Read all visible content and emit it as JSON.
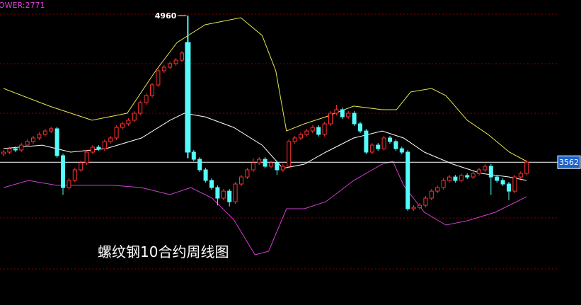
{
  "chart_data": {
    "type": "candlestick",
    "indicator_label": "OWER:2771",
    "title": "螺纹钢10合约周线图",
    "ylim": [
      2200,
      5109
    ],
    "up_color": "#ff3232",
    "down_color": "#54fcfc",
    "ohlc": [
      [
        3640,
        3680,
        3620,
        3658
      ],
      [
        3658,
        3711,
        3638,
        3691
      ],
      [
        3691,
        3711,
        3658,
        3678
      ],
      [
        3678,
        3745,
        3658,
        3725
      ],
      [
        3725,
        3779,
        3705,
        3759
      ],
      [
        3759,
        3813,
        3739,
        3793
      ],
      [
        3793,
        3847,
        3773,
        3827
      ],
      [
        3827,
        3880,
        3807,
        3860
      ],
      [
        3860,
        3901,
        3840,
        3881
      ],
      [
        3881,
        3901,
        3604,
        3624
      ],
      [
        3624,
        3644,
        3250,
        3320
      ],
      [
        3320,
        3408,
        3300,
        3388
      ],
      [
        3388,
        3509,
        3368,
        3489
      ],
      [
        3489,
        3577,
        3469,
        3557
      ],
      [
        3557,
        3678,
        3537,
        3658
      ],
      [
        3658,
        3725,
        3638,
        3705
      ],
      [
        3705,
        3725,
        3671,
        3691
      ],
      [
        3691,
        3779,
        3671,
        3759
      ],
      [
        3759,
        3813,
        3739,
        3793
      ],
      [
        3793,
        3914,
        3773,
        3894
      ],
      [
        3894,
        3948,
        3874,
        3928
      ],
      [
        3928,
        3982,
        3908,
        3962
      ],
      [
        3962,
        4049,
        3942,
        4029
      ],
      [
        4029,
        4150,
        4009,
        4130
      ],
      [
        4130,
        4218,
        4110,
        4198
      ],
      [
        4198,
        4319,
        4178,
        4299
      ],
      [
        4299,
        4454,
        4279,
        4434
      ],
      [
        4434,
        4488,
        4414,
        4468
      ],
      [
        4468,
        4522,
        4448,
        4502
      ],
      [
        4502,
        4555,
        4482,
        4535
      ],
      [
        4535,
        4623,
        4515,
        4603
      ],
      [
        4704,
        4960,
        3600,
        3658
      ],
      [
        3658,
        3678,
        3570,
        3590
      ],
      [
        3590,
        3610,
        3469,
        3489
      ],
      [
        3489,
        3509,
        3368,
        3388
      ],
      [
        3388,
        3408,
        3300,
        3320
      ],
      [
        3320,
        3340,
        3150,
        3219
      ],
      [
        3219,
        3306,
        3199,
        3286
      ],
      [
        3286,
        3306,
        3140,
        3185
      ],
      [
        3185,
        3374,
        3165,
        3354
      ],
      [
        3354,
        3441,
        3334,
        3421
      ],
      [
        3421,
        3509,
        3401,
        3489
      ],
      [
        3489,
        3600,
        3469,
        3557
      ],
      [
        3557,
        3610,
        3537,
        3590
      ],
      [
        3590,
        3610,
        3503,
        3523
      ],
      [
        3523,
        3577,
        3503,
        3557
      ],
      [
        3557,
        3577,
        3440,
        3489
      ],
      [
        3489,
        3543,
        3469,
        3523
      ],
      [
        3523,
        3779,
        3503,
        3759
      ],
      [
        3759,
        3813,
        3739,
        3793
      ],
      [
        3793,
        3847,
        3773,
        3827
      ],
      [
        3827,
        3880,
        3807,
        3860
      ],
      [
        3860,
        3914,
        3840,
        3894
      ],
      [
        3894,
        3914,
        3807,
        3827
      ],
      [
        3827,
        3948,
        3807,
        3928
      ],
      [
        3928,
        4049,
        3908,
        4029
      ],
      [
        4029,
        4110,
        4009,
        4063
      ],
      [
        4063,
        4083,
        3975,
        3995
      ],
      [
        3995,
        4049,
        3975,
        4029
      ],
      [
        4029,
        4049,
        3908,
        3928
      ],
      [
        3928,
        3948,
        3840,
        3860
      ],
      [
        3860,
        3880,
        3638,
        3658
      ],
      [
        3658,
        3745,
        3638,
        3725
      ],
      [
        3725,
        3745,
        3671,
        3691
      ],
      [
        3691,
        3813,
        3671,
        3793
      ],
      [
        3793,
        3813,
        3739,
        3759
      ],
      [
        3759,
        3779,
        3671,
        3691
      ],
      [
        3691,
        3711,
        3638,
        3658
      ],
      [
        3658,
        3678,
        3098,
        3118
      ],
      [
        3118,
        3151,
        3098,
        3131
      ],
      [
        3131,
        3171,
        3111,
        3151
      ],
      [
        3151,
        3239,
        3131,
        3219
      ],
      [
        3219,
        3306,
        3199,
        3286
      ],
      [
        3286,
        3340,
        3266,
        3320
      ],
      [
        3320,
        3408,
        3300,
        3388
      ],
      [
        3388,
        3441,
        3368,
        3421
      ],
      [
        3421,
        3441,
        3368,
        3388
      ],
      [
        3388,
        3455,
        3368,
        3435
      ],
      [
        3435,
        3455,
        3401,
        3421
      ],
      [
        3421,
        3475,
        3401,
        3455
      ],
      [
        3455,
        3509,
        3435,
        3489
      ],
      [
        3489,
        3543,
        3469,
        3523
      ],
      [
        3523,
        3543,
        3250,
        3421
      ],
      [
        3421,
        3441,
        3368,
        3388
      ],
      [
        3388,
        3408,
        3334,
        3354
      ],
      [
        3354,
        3374,
        3200,
        3286
      ],
      [
        3286,
        3441,
        3266,
        3421
      ],
      [
        3421,
        3475,
        3401,
        3455
      ],
      [
        3455,
        3580,
        3435,
        3562
      ]
    ],
    "bands": [
      {
        "color": "#e6e650",
        "x": [
          0,
          7.7,
          14.9,
          20.8,
          25.6,
          29.2,
          33.9,
          39.9,
          43.5,
          45.8,
          47.6,
          50.6,
          54.2,
          58.9,
          63.7,
          66.1,
          68.5,
          72,
          74.4,
          78,
          81.5,
          85.1,
          88
        ],
        "values": [
          4265,
          4097,
          3962,
          4029,
          4434,
          4704,
          4873,
          4940,
          4771,
          4434,
          3860,
          3928,
          3995,
          4097,
          4063,
          4063,
          4232,
          4265,
          4198,
          3962,
          3827,
          3658,
          3570
        ]
      },
      {
        "color": "#ffffff",
        "x": [
          0,
          6.5,
          11.3,
          17.3,
          23.2,
          28,
          30.4,
          33.9,
          38.7,
          43.5,
          47,
          50.6,
          54.2,
          58.9,
          63.7,
          67.3,
          70.8,
          75.6,
          80.4,
          85.1,
          88
        ],
        "values": [
          3692,
          3725,
          3658,
          3692,
          3793,
          3962,
          4029,
          3995,
          3894,
          3725,
          3503,
          3543,
          3658,
          3793,
          3860,
          3793,
          3658,
          3543,
          3455,
          3421,
          3388
        ]
      },
      {
        "color": "#d040d0",
        "x": [
          0,
          4.2,
          8.9,
          13.7,
          18.5,
          23.2,
          28,
          31.5,
          35.1,
          38.7,
          42.3,
          44.6,
          47.6,
          50.6,
          54.2,
          58.9,
          63.7,
          65.5,
          67.3,
          70.8,
          74.4,
          78,
          82.7,
          85.1,
          88
        ],
        "values": [
          3320,
          3388,
          3341,
          3341,
          3341,
          3320,
          3253,
          3320,
          3219,
          3017,
          2679,
          2713,
          3118,
          3118,
          3185,
          3388,
          3543,
          3570,
          3341,
          3084,
          2963,
          3003,
          3084,
          3152,
          3233
        ]
      }
    ]
  }
}
